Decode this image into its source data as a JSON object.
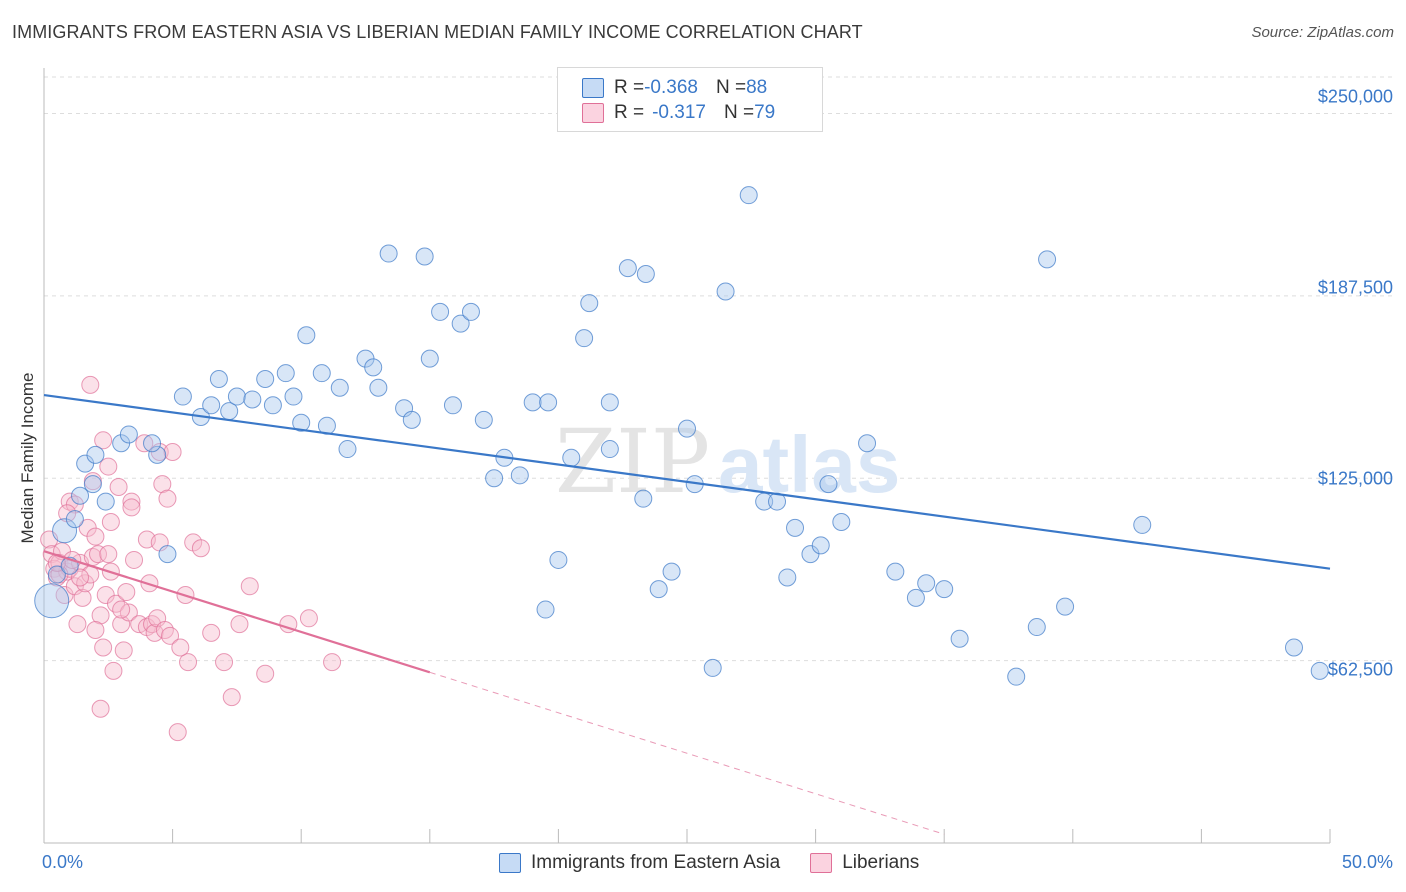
{
  "title": "IMMIGRANTS FROM EASTERN ASIA VS LIBERIAN MEDIAN FAMILY INCOME CORRELATION CHART",
  "source": "Source: ZipAtlas.com",
  "watermark": {
    "zip": "ZIP",
    "atlas": "atlas"
  },
  "legend": {
    "rows": [
      {
        "r_label": "R = ",
        "r_value": "-0.368",
        "n_label": "N = ",
        "n_value": "88"
      },
      {
        "r_label": "R = ",
        "r_value": "-0.317",
        "n_label": "N = ",
        "n_value": "79"
      }
    ]
  },
  "colors": {
    "blue": "#3a78c8",
    "blue_fill": "#a9c8ee",
    "pink": "#e07098",
    "pink_fill": "#f6bccf",
    "grid": "#dddddd"
  },
  "chart_data": {
    "type": "scatter",
    "ylabel": "Median Family Income",
    "xlabel": "",
    "xlim": [
      0,
      50
    ],
    "ylim": [
      0,
      262500
    ],
    "x_tick_labels": [
      "0.0%",
      "50.0%"
    ],
    "y_ticks": [
      62500,
      125000,
      187500,
      250000
    ],
    "y_tick_labels": [
      "$62,500",
      "$125,000",
      "$187,500",
      "$250,000"
    ],
    "grid": "horizontal dashed",
    "series": [
      {
        "name": "Immigrants from Eastern Asia",
        "color": "#3a78c8",
        "trend": {
          "x": [
            0,
            50
          ],
          "y": [
            153500,
            94000
          ]
        },
        "points": [
          [
            0.3,
            83000
          ],
          [
            0.5,
            92000
          ],
          [
            0.8,
            107000
          ],
          [
            1.0,
            95000
          ],
          [
            1.2,
            111000
          ],
          [
            1.4,
            119000
          ],
          [
            1.6,
            130000
          ],
          [
            1.9,
            123000
          ],
          [
            2.0,
            133000
          ],
          [
            2.4,
            117000
          ],
          [
            3.0,
            137000
          ],
          [
            3.3,
            140000
          ],
          [
            4.4,
            133000
          ],
          [
            4.8,
            99000
          ],
          [
            4.2,
            137000
          ],
          [
            5.4,
            153000
          ],
          [
            6.1,
            146000
          ],
          [
            6.5,
            150000
          ],
          [
            6.8,
            159000
          ],
          [
            7.2,
            148000
          ],
          [
            7.5,
            153000
          ],
          [
            8.1,
            152000
          ],
          [
            8.6,
            159000
          ],
          [
            8.9,
            150000
          ],
          [
            9.4,
            161000
          ],
          [
            9.7,
            153000
          ],
          [
            10.0,
            144000
          ],
          [
            10.2,
            174000
          ],
          [
            10.8,
            161000
          ],
          [
            11.0,
            143000
          ],
          [
            11.5,
            156000
          ],
          [
            11.8,
            135000
          ],
          [
            12.5,
            166000
          ],
          [
            12.8,
            163000
          ],
          [
            13.0,
            156000
          ],
          [
            13.4,
            202000
          ],
          [
            14.0,
            149000
          ],
          [
            14.3,
            145000
          ],
          [
            14.8,
            201000
          ],
          [
            15.0,
            166000
          ],
          [
            15.4,
            182000
          ],
          [
            15.9,
            150000
          ],
          [
            16.2,
            178000
          ],
          [
            16.6,
            182000
          ],
          [
            17.1,
            145000
          ],
          [
            17.5,
            125000
          ],
          [
            17.9,
            132000
          ],
          [
            18.5,
            126000
          ],
          [
            19.0,
            151000
          ],
          [
            19.5,
            80000
          ],
          [
            19.6,
            151000
          ],
          [
            20.0,
            97000
          ],
          [
            20.5,
            132000
          ],
          [
            21.0,
            173000
          ],
          [
            21.2,
            185000
          ],
          [
            22.0,
            135000
          ],
          [
            22.0,
            151000
          ],
          [
            22.7,
            197000
          ],
          [
            23.3,
            118000
          ],
          [
            23.4,
            195000
          ],
          [
            23.9,
            87000
          ],
          [
            24.4,
            93000
          ],
          [
            25.0,
            142000
          ],
          [
            25.3,
            123000
          ],
          [
            26.0,
            60000
          ],
          [
            26.5,
            189000
          ],
          [
            27.4,
            222000
          ],
          [
            28.0,
            117000
          ],
          [
            28.5,
            117000
          ],
          [
            28.9,
            91000
          ],
          [
            29.2,
            108000
          ],
          [
            29.8,
            99000
          ],
          [
            30.2,
            102000
          ],
          [
            30.5,
            123000
          ],
          [
            31.0,
            110000
          ],
          [
            32.0,
            137000
          ],
          [
            33.1,
            93000
          ],
          [
            33.9,
            84000
          ],
          [
            34.3,
            89000
          ],
          [
            35.0,
            87000
          ],
          [
            35.6,
            70000
          ],
          [
            37.8,
            57000
          ],
          [
            38.6,
            74000
          ],
          [
            39.0,
            200000
          ],
          [
            39.7,
            81000
          ],
          [
            42.7,
            109000
          ],
          [
            48.6,
            67000
          ],
          [
            49.6,
            59000
          ]
        ]
      },
      {
        "name": "Liberians",
        "color": "#e07098",
        "trend": {
          "x": [
            0,
            15
          ],
          "y": [
            100000,
            58500
          ]
        },
        "trend_dashed": {
          "x": [
            15,
            35
          ],
          "y": [
            58500,
            3000
          ]
        },
        "points": [
          [
            0.2,
            104000
          ],
          [
            0.3,
            99000
          ],
          [
            0.4,
            94000
          ],
          [
            0.5,
            91000
          ],
          [
            0.6,
            96000
          ],
          [
            0.7,
            100000
          ],
          [
            0.8,
            85000
          ],
          [
            0.9,
            93000
          ],
          [
            1.0,
            117000
          ],
          [
            1.0,
            94000
          ],
          [
            1.2,
            88000
          ],
          [
            1.2,
            116000
          ],
          [
            1.3,
            75000
          ],
          [
            1.4,
            96000
          ],
          [
            1.5,
            84000
          ],
          [
            1.6,
            89000
          ],
          [
            1.7,
            108000
          ],
          [
            1.8,
            92000
          ],
          [
            1.9,
            98000
          ],
          [
            2.0,
            105000
          ],
          [
            2.1,
            99000
          ],
          [
            2.2,
            78000
          ],
          [
            2.3,
            138000
          ],
          [
            2.2,
            46000
          ],
          [
            2.3,
            67000
          ],
          [
            2.4,
            85000
          ],
          [
            2.5,
            129000
          ],
          [
            2.6,
            110000
          ],
          [
            2.7,
            59000
          ],
          [
            2.8,
            82000
          ],
          [
            2.9,
            122000
          ],
          [
            3.0,
            75000
          ],
          [
            3.1,
            66000
          ],
          [
            3.2,
            86000
          ],
          [
            3.3,
            79000
          ],
          [
            3.4,
            117000
          ],
          [
            3.4,
            115000
          ],
          [
            3.5,
            97000
          ],
          [
            3.7,
            75000
          ],
          [
            3.9,
            137000
          ],
          [
            4.0,
            74000
          ],
          [
            4.0,
            104000
          ],
          [
            4.1,
            89000
          ],
          [
            4.2,
            75000
          ],
          [
            4.3,
            72000
          ],
          [
            4.4,
            77000
          ],
          [
            4.5,
            134000
          ],
          [
            4.5,
            103000
          ],
          [
            4.6,
            123000
          ],
          [
            4.7,
            73000
          ],
          [
            5.0,
            134000
          ],
          [
            5.2,
            38000
          ],
          [
            5.5,
            85000
          ],
          [
            5.6,
            62000
          ],
          [
            5.8,
            103000
          ],
          [
            6.1,
            101000
          ],
          [
            6.5,
            72000
          ],
          [
            7.0,
            62000
          ],
          [
            7.3,
            50000
          ],
          [
            7.6,
            75000
          ],
          [
            8.0,
            88000
          ],
          [
            8.6,
            58000
          ],
          [
            9.5,
            75000
          ],
          [
            10.3,
            77000
          ],
          [
            11.2,
            62000
          ],
          [
            1.9,
            124000
          ],
          [
            0.6,
            92000
          ],
          [
            1.1,
            97000
          ],
          [
            1.4,
            91000
          ],
          [
            3.0,
            80000
          ],
          [
            4.8,
            118000
          ],
          [
            0.9,
            113000
          ],
          [
            2.0,
            73000
          ],
          [
            2.6,
            93000
          ],
          [
            4.9,
            71000
          ],
          [
            1.8,
            157000
          ],
          [
            5.3,
            67000
          ],
          [
            0.5,
            96000
          ],
          [
            2.5,
            99000
          ]
        ]
      }
    ]
  }
}
